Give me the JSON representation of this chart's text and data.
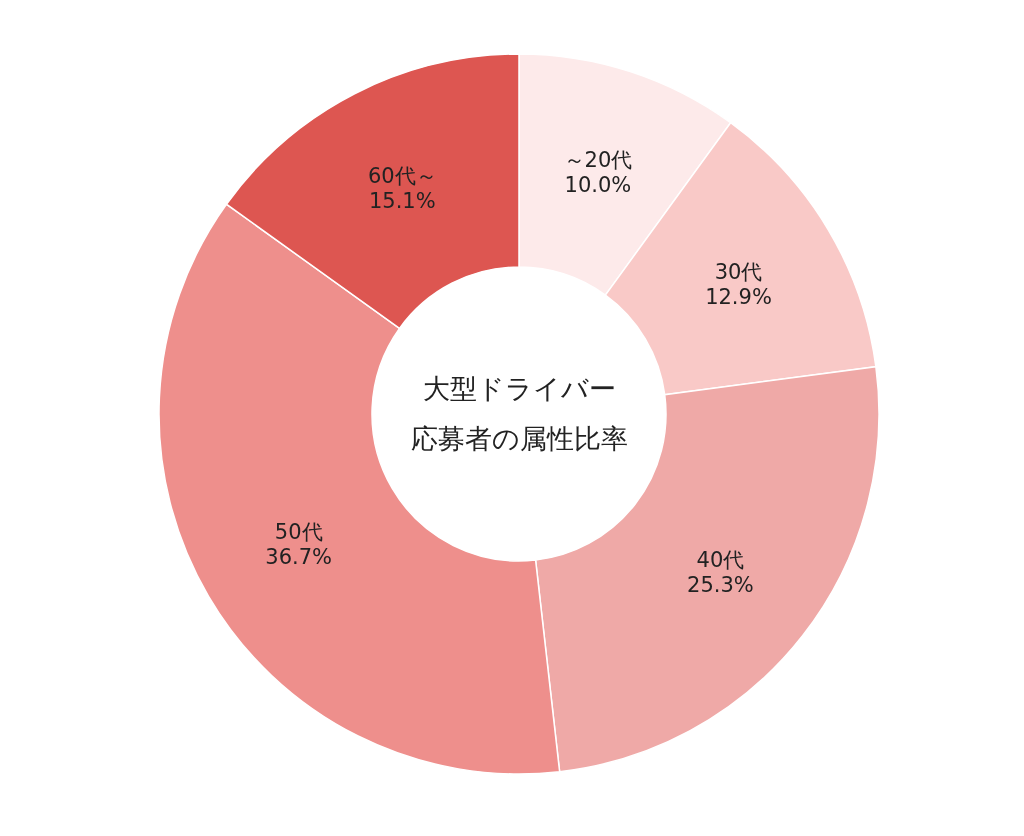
{
  "chart_data": {
    "type": "donut",
    "title": "大型ドライバー応募者の属性比率",
    "categories": [
      "～20代",
      "30代",
      "40代",
      "50代",
      "60代～"
    ],
    "values": [
      10.0,
      12.9,
      25.3,
      36.7,
      15.1
    ],
    "colors": [
      "#fdeaea",
      "#f9c9c7",
      "#efa9a7",
      "#ee8f8c",
      "#dd5651"
    ],
    "value_labels": [
      "10.0%",
      "12.9%",
      "25.3%",
      "36.7%",
      "15.1%"
    ]
  }
}
